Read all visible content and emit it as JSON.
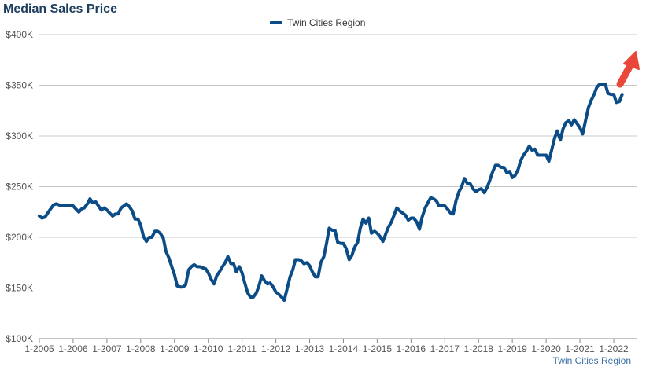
{
  "chart_data": {
    "type": "line",
    "title": "Median Sales Price",
    "source_label": "Twin Cities Region",
    "xlabel": "",
    "ylabel": "",
    "ylim": [
      100000,
      400000
    ],
    "y_ticks": [
      100000,
      150000,
      200000,
      250000,
      300000,
      350000,
      400000
    ],
    "y_tick_labels": [
      "$100K",
      "$150K",
      "$200K",
      "$250K",
      "$300K",
      "$350K",
      "$400K"
    ],
    "x_range": [
      2005,
      2022
    ],
    "x_ticks": [
      2005,
      2006,
      2007,
      2008,
      2009,
      2010,
      2011,
      2012,
      2013,
      2014,
      2015,
      2016,
      2017,
      2018,
      2019,
      2020,
      2021,
      2022
    ],
    "x_tick_labels": [
      "1-2005",
      "1-2006",
      "1-2007",
      "1-2008",
      "1-2009",
      "1-2010",
      "1-2011",
      "1-2012",
      "1-2013",
      "1-2014",
      "1-2015",
      "1-2016",
      "1-2017",
      "1-2018",
      "1-2019",
      "1-2020",
      "1-2021",
      "1-2022"
    ],
    "grid": "horizontal",
    "legend_position": "top-center",
    "series": [
      {
        "name": "Twin Cities Region",
        "color": "#0b4c86",
        "points": [
          [
            2005.0,
            221000
          ],
          [
            2005.08,
            219000
          ],
          [
            2005.17,
            220000
          ],
          [
            2005.25,
            224000
          ],
          [
            2005.33,
            228000
          ],
          [
            2005.42,
            232000
          ],
          [
            2005.5,
            233000
          ],
          [
            2005.58,
            232000
          ],
          [
            2005.67,
            231000
          ],
          [
            2005.75,
            231000
          ],
          [
            2005.83,
            231000
          ],
          [
            2005.92,
            231000
          ],
          [
            2006.0,
            231000
          ],
          [
            2006.08,
            228000
          ],
          [
            2006.17,
            225000
          ],
          [
            2006.25,
            228000
          ],
          [
            2006.33,
            229000
          ],
          [
            2006.42,
            233000
          ],
          [
            2006.5,
            238000
          ],
          [
            2006.58,
            234000
          ],
          [
            2006.67,
            235000
          ],
          [
            2006.75,
            231000
          ],
          [
            2006.83,
            227000
          ],
          [
            2006.92,
            229000
          ],
          [
            2007.0,
            227000
          ],
          [
            2007.08,
            224000
          ],
          [
            2007.17,
            221000
          ],
          [
            2007.25,
            223000
          ],
          [
            2007.33,
            223000
          ],
          [
            2007.42,
            229000
          ],
          [
            2007.5,
            231000
          ],
          [
            2007.58,
            233000
          ],
          [
            2007.67,
            230000
          ],
          [
            2007.75,
            226000
          ],
          [
            2007.83,
            218000
          ],
          [
            2007.92,
            218000
          ],
          [
            2008.0,
            212000
          ],
          [
            2008.08,
            201000
          ],
          [
            2008.17,
            196000
          ],
          [
            2008.25,
            200000
          ],
          [
            2008.33,
            200000
          ],
          [
            2008.42,
            206000
          ],
          [
            2008.5,
            206000
          ],
          [
            2008.58,
            204000
          ],
          [
            2008.67,
            199000
          ],
          [
            2008.75,
            186000
          ],
          [
            2008.83,
            180000
          ],
          [
            2008.92,
            171000
          ],
          [
            2009.0,
            163000
          ],
          [
            2009.08,
            152000
          ],
          [
            2009.17,
            151000
          ],
          [
            2009.25,
            151000
          ],
          [
            2009.33,
            153000
          ],
          [
            2009.42,
            168000
          ],
          [
            2009.5,
            171000
          ],
          [
            2009.58,
            173000
          ],
          [
            2009.67,
            171000
          ],
          [
            2009.75,
            171000
          ],
          [
            2009.83,
            170000
          ],
          [
            2009.92,
            169000
          ],
          [
            2010.0,
            165000
          ],
          [
            2010.08,
            159000
          ],
          [
            2010.17,
            154000
          ],
          [
            2010.25,
            162000
          ],
          [
            2010.33,
            166000
          ],
          [
            2010.42,
            171000
          ],
          [
            2010.5,
            175000
          ],
          [
            2010.58,
            181000
          ],
          [
            2010.67,
            174000
          ],
          [
            2010.75,
            174000
          ],
          [
            2010.83,
            166000
          ],
          [
            2010.92,
            171000
          ],
          [
            2011.0,
            165000
          ],
          [
            2011.08,
            155000
          ],
          [
            2011.17,
            145000
          ],
          [
            2011.25,
            141000
          ],
          [
            2011.33,
            141000
          ],
          [
            2011.42,
            145000
          ],
          [
            2011.5,
            152000
          ],
          [
            2011.58,
            162000
          ],
          [
            2011.67,
            157000
          ],
          [
            2011.75,
            154000
          ],
          [
            2011.83,
            155000
          ],
          [
            2011.92,
            151000
          ],
          [
            2012.0,
            146000
          ],
          [
            2012.08,
            144000
          ],
          [
            2012.17,
            141000
          ],
          [
            2012.25,
            138000
          ],
          [
            2012.33,
            149000
          ],
          [
            2012.42,
            161000
          ],
          [
            2012.5,
            168000
          ],
          [
            2012.58,
            178000
          ],
          [
            2012.67,
            178000
          ],
          [
            2012.75,
            177000
          ],
          [
            2012.83,
            174000
          ],
          [
            2012.92,
            175000
          ],
          [
            2013.0,
            172000
          ],
          [
            2013.08,
            166000
          ],
          [
            2013.17,
            161000
          ],
          [
            2013.25,
            161000
          ],
          [
            2013.33,
            175000
          ],
          [
            2013.42,
            181000
          ],
          [
            2013.5,
            194000
          ],
          [
            2013.58,
            209000
          ],
          [
            2013.67,
            207000
          ],
          [
            2013.75,
            207000
          ],
          [
            2013.83,
            195000
          ],
          [
            2013.92,
            194000
          ],
          [
            2014.0,
            194000
          ],
          [
            2014.08,
            189000
          ],
          [
            2014.17,
            178000
          ],
          [
            2014.25,
            182000
          ],
          [
            2014.33,
            190000
          ],
          [
            2014.42,
            195000
          ],
          [
            2014.5,
            209000
          ],
          [
            2014.58,
            218000
          ],
          [
            2014.67,
            214000
          ],
          [
            2014.75,
            219000
          ],
          [
            2014.83,
            204000
          ],
          [
            2014.92,
            206000
          ],
          [
            2015.0,
            204000
          ],
          [
            2015.08,
            201000
          ],
          [
            2015.17,
            196000
          ],
          [
            2015.25,
            203000
          ],
          [
            2015.33,
            210000
          ],
          [
            2015.42,
            215000
          ],
          [
            2015.5,
            222000
          ],
          [
            2015.58,
            229000
          ],
          [
            2015.67,
            226000
          ],
          [
            2015.75,
            224000
          ],
          [
            2015.83,
            222000
          ],
          [
            2015.92,
            217000
          ],
          [
            2016.0,
            219000
          ],
          [
            2016.08,
            219000
          ],
          [
            2016.17,
            215000
          ],
          [
            2016.25,
            208000
          ],
          [
            2016.33,
            220000
          ],
          [
            2016.42,
            229000
          ],
          [
            2016.5,
            234000
          ],
          [
            2016.58,
            239000
          ],
          [
            2016.67,
            238000
          ],
          [
            2016.75,
            236000
          ],
          [
            2016.83,
            231000
          ],
          [
            2016.92,
            231000
          ],
          [
            2017.0,
            231000
          ],
          [
            2017.08,
            228000
          ],
          [
            2017.17,
            224000
          ],
          [
            2017.25,
            223000
          ],
          [
            2017.33,
            236000
          ],
          [
            2017.42,
            245000
          ],
          [
            2017.5,
            250000
          ],
          [
            2017.58,
            258000
          ],
          [
            2017.67,
            253000
          ],
          [
            2017.75,
            253000
          ],
          [
            2017.83,
            248000
          ],
          [
            2017.92,
            245000
          ],
          [
            2018.0,
            247000
          ],
          [
            2018.08,
            248000
          ],
          [
            2018.17,
            244000
          ],
          [
            2018.25,
            249000
          ],
          [
            2018.33,
            256000
          ],
          [
            2018.42,
            265000
          ],
          [
            2018.5,
            271000
          ],
          [
            2018.58,
            271000
          ],
          [
            2018.67,
            269000
          ],
          [
            2018.75,
            269000
          ],
          [
            2018.83,
            264000
          ],
          [
            2018.92,
            265000
          ],
          [
            2019.0,
            259000
          ],
          [
            2019.08,
            261000
          ],
          [
            2019.17,
            267000
          ],
          [
            2019.25,
            276000
          ],
          [
            2019.33,
            281000
          ],
          [
            2019.42,
            285000
          ],
          [
            2019.5,
            290000
          ],
          [
            2019.58,
            286000
          ],
          [
            2019.67,
            287000
          ],
          [
            2019.75,
            281000
          ],
          [
            2019.83,
            281000
          ],
          [
            2019.92,
            281000
          ],
          [
            2020.0,
            281000
          ],
          [
            2020.08,
            275000
          ],
          [
            2020.17,
            287000
          ],
          [
            2020.25,
            298000
          ],
          [
            2020.33,
            305000
          ],
          [
            2020.42,
            296000
          ],
          [
            2020.5,
            307000
          ],
          [
            2020.58,
            313000
          ],
          [
            2020.67,
            315000
          ],
          [
            2020.75,
            311000
          ],
          [
            2020.83,
            316000
          ],
          [
            2020.92,
            312000
          ],
          [
            2021.0,
            308000
          ],
          [
            2021.08,
            302000
          ],
          [
            2021.17,
            316000
          ],
          [
            2021.25,
            328000
          ],
          [
            2021.33,
            335000
          ],
          [
            2021.42,
            341000
          ],
          [
            2021.5,
            348000
          ],
          [
            2021.58,
            351000
          ],
          [
            2021.67,
            351000
          ],
          [
            2021.75,
            351000
          ],
          [
            2021.83,
            342000
          ],
          [
            2021.92,
            341000
          ],
          [
            2022.0,
            341000
          ],
          [
            2022.08,
            333000
          ],
          [
            2022.17,
            334000
          ],
          [
            2022.25,
            341000
          ]
        ]
      }
    ],
    "annotation": {
      "type": "arrow",
      "direction": "up-right",
      "color": "#e8473a"
    }
  }
}
